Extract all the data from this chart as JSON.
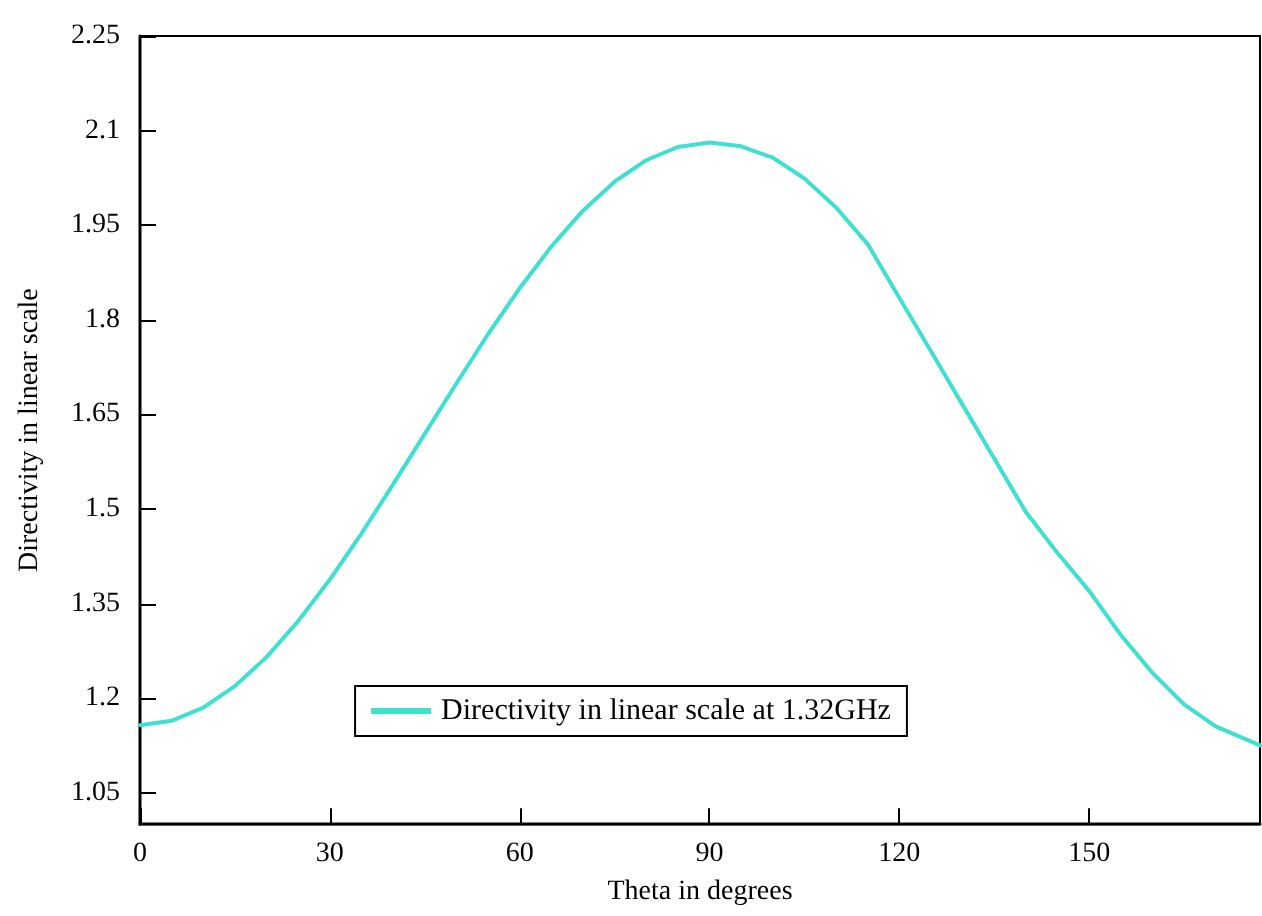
{
  "chart_data": {
    "type": "line",
    "xlabel": "Theta in degrees",
    "ylabel": "Directivity in linear scale",
    "xlim": [
      0,
      177
    ],
    "xticks": [
      0,
      30,
      60,
      90,
      120,
      150
    ],
    "ylim": [
      1,
      2.25
    ],
    "yticks": [
      1.05,
      1.2,
      1.35,
      1.5,
      1.65,
      1.8,
      1.95,
      2.1,
      2.25
    ],
    "grid": false,
    "legend": "bottom",
    "marker": "none",
    "line_style": "solid",
    "series": [
      {
        "name": "Directivity in linear scale at 1.32GHz",
        "color": "#40e0d0",
        "x": [
          0,
          5,
          10,
          15,
          20,
          25,
          30,
          35,
          40,
          45,
          50,
          55,
          60,
          65,
          70,
          75,
          80,
          85,
          90,
          95,
          100,
          105,
          110,
          115,
          120,
          125,
          130,
          135,
          140,
          145,
          150,
          155,
          160,
          165,
          170,
          177
        ],
        "values": [
          1.157,
          1.164,
          1.185,
          1.219,
          1.265,
          1.322,
          1.388,
          1.461,
          1.539,
          1.619,
          1.699,
          1.777,
          1.85,
          1.916,
          1.973,
          2.019,
          2.053,
          2.074,
          2.081,
          2.075,
          2.057,
          2.024,
          1.978,
          1.92,
          1.835,
          1.75,
          1.665,
          1.58,
          1.495,
          1.43,
          1.37,
          1.3,
          1.24,
          1.19,
          1.155,
          1.125
        ]
      }
    ]
  }
}
